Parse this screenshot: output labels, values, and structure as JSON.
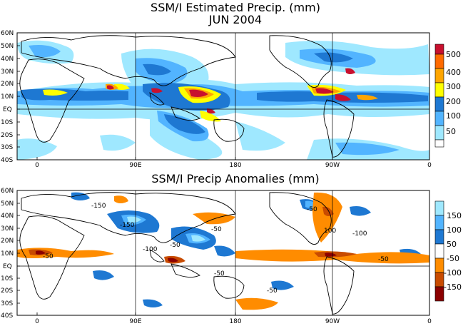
{
  "panels": [
    {
      "title": "SSM/I Estimated Precip. (mm)",
      "subtitle": "JUN 2004",
      "lat_labels": [
        "60N",
        "50N",
        "40N",
        "30N",
        "20N",
        "10N",
        "EQ",
        "10S",
        "20S",
        "30S",
        "40S"
      ],
      "lon_labels": [
        "0",
        "90E",
        "180",
        "90W",
        "0"
      ],
      "colorbar": {
        "levels": [
          "500",
          "400",
          "300",
          "200",
          "100",
          "50"
        ],
        "colors": [
          "#c8102e",
          "#ff6a00",
          "#ffa500",
          "#ffff00",
          "#1e78d2",
          "#52b4ff",
          "#9fe8ff",
          "#ffffff"
        ]
      },
      "chart_data": {
        "type": "heatmap",
        "variable": "SSM/I Estimated Precip. (mm)",
        "period": "JUN 2004",
        "contour_levels_mm": [
          50,
          100,
          200,
          300,
          400,
          500
        ],
        "colors": {
          "below_50": "#ffffff",
          "50_100": "#9fe8ff",
          "100_200": "#52b4ff",
          "200_300": "#1e78d2",
          "300_400": "#ffff00",
          "400_500": "#ffa500",
          "500_plus": "#c8102e"
        },
        "lat_range": [
          "40S",
          "60N"
        ],
        "lon_range": [
          "0",
          "0"
        ]
      }
    },
    {
      "title": "SSM/I Precip Anomalies (mm)",
      "lat_labels": [
        "60N",
        "50N",
        "40N",
        "30N",
        "20N",
        "10N",
        "EQ",
        "10S",
        "20S",
        "30S",
        "40S"
      ],
      "lon_labels": [
        "0",
        "90E",
        "180",
        "90W",
        "0"
      ],
      "colorbar": {
        "levels": [
          "150",
          "100",
          "50",
          "-50",
          "-100",
          "-150"
        ],
        "colors": [
          "#9fe8ff",
          "#52b4ff",
          "#1e78d2",
          "#ffffff",
          "#ff8c00",
          "#c84b00",
          "#8b0000"
        ]
      },
      "chart_data": {
        "type": "heatmap",
        "variable": "SSM/I Precip Anomalies (mm)",
        "contour_levels_mm": [
          -150,
          -100,
          -50,
          50,
          100,
          150
        ],
        "contour_labels": [
          "-50",
          "-100",
          "-150",
          "50",
          "100",
          "150"
        ],
        "lat_range": [
          "40S",
          "60N"
        ],
        "lon_range": [
          "0",
          "0"
        ]
      }
    }
  ]
}
